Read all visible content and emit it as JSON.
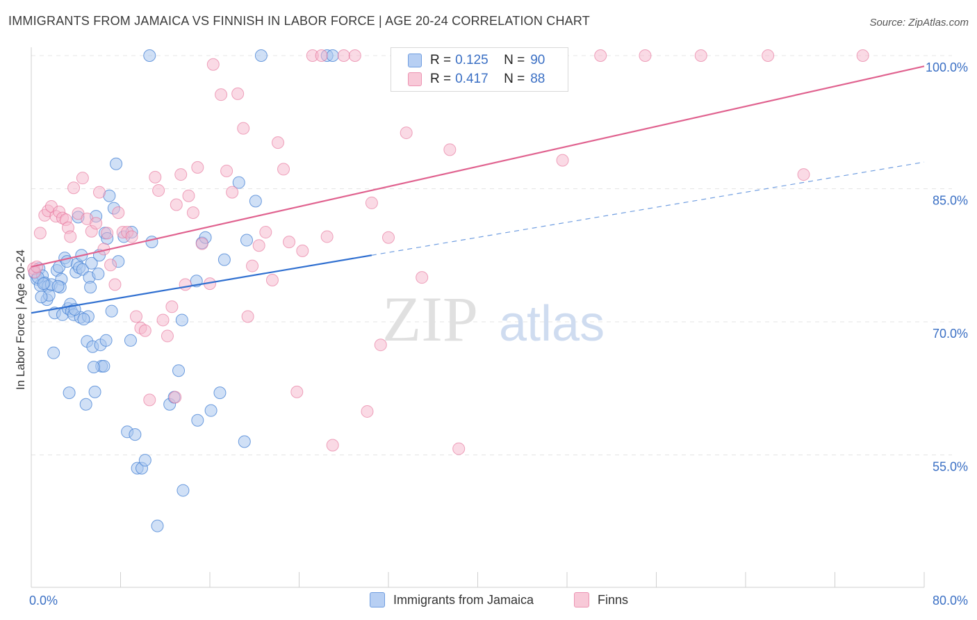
{
  "title": "IMMIGRANTS FROM JAMAICA VS FINNISH IN LABOR FORCE | AGE 20-24 CORRELATION CHART",
  "source": "Source: ZipAtlas.com",
  "watermark": {
    "zip": "ZIP",
    "atlas": "atlas"
  },
  "legend": {
    "rows": [
      {
        "r_label": "R = ",
        "r_value": "0.125",
        "n_label": "N = ",
        "n_value": "90"
      },
      {
        "r_label": "R = ",
        "r_value": "0.417",
        "n_label": "N = ",
        "n_value": "88"
      }
    ]
  },
  "colors": {
    "blue": "#4a84d6",
    "blue_fill": "#a9c6ef",
    "pink": "#e46a95",
    "pink_fill": "#f6b6cb",
    "axis_label": "#3a6fc4",
    "grid": "#e4e4e4"
  },
  "chart_data": {
    "type": "scatter",
    "title": "IMMIGRANTS FROM JAMAICA VS FINNISH IN LABOR FORCE | AGE 20-24 CORRELATION CHART",
    "xlabel": "",
    "ylabel": "In Labor Force | Age 20-24",
    "xlim": [
      0,
      80
    ],
    "ylim": [
      40,
      100
    ],
    "x_tick_labels": [
      "0.0%",
      "80.0%"
    ],
    "y_ticks": [
      55,
      70,
      85,
      100
    ],
    "y_tick_labels": [
      "55.0%",
      "70.0%",
      "85.0%",
      "100.0%"
    ],
    "grid": true,
    "legend_position": "top-center",
    "series": [
      {
        "name": "Immigrants from Jamaica",
        "color": "#4a84d6",
        "R": 0.125,
        "N": 90,
        "trend": {
          "x": [
            0,
            30.5
          ],
          "y": [
            71.0,
            77.5
          ]
        },
        "trend_extension": {
          "x": [
            30.5,
            80
          ],
          "y": [
            77.5,
            88.0
          ]
        },
        "points": [
          [
            0.3,
            75.5
          ],
          [
            0.5,
            74.8
          ],
          [
            0.7,
            76.0
          ],
          [
            0.8,
            74.1
          ],
          [
            1.0,
            75.2
          ],
          [
            1.2,
            74.4
          ],
          [
            1.4,
            72.5
          ],
          [
            1.5,
            74.0
          ],
          [
            1.6,
            73.0
          ],
          [
            1.8,
            74.2
          ],
          [
            2.0,
            66.5
          ],
          [
            2.1,
            71.0
          ],
          [
            2.3,
            75.8
          ],
          [
            2.5,
            76.2
          ],
          [
            2.7,
            74.8
          ],
          [
            2.8,
            70.8
          ],
          [
            3.0,
            77.2
          ],
          [
            3.2,
            76.8
          ],
          [
            3.3,
            71.5
          ],
          [
            3.5,
            72.0
          ],
          [
            3.6,
            71.2
          ],
          [
            3.8,
            70.8
          ],
          [
            4.0,
            75.6
          ],
          [
            4.1,
            76.5
          ],
          [
            4.2,
            81.8
          ],
          [
            4.3,
            76.1
          ],
          [
            4.4,
            70.5
          ],
          [
            4.5,
            77.5
          ],
          [
            4.6,
            75.9
          ],
          [
            5.0,
            67.8
          ],
          [
            5.1,
            70.6
          ],
          [
            5.2,
            75.0
          ],
          [
            5.3,
            73.9
          ],
          [
            5.4,
            76.6
          ],
          [
            5.5,
            67.2
          ],
          [
            5.7,
            62.1
          ],
          [
            5.8,
            81.9
          ],
          [
            6.0,
            75.4
          ],
          [
            6.1,
            77.5
          ],
          [
            6.2,
            67.4
          ],
          [
            6.3,
            65.0
          ],
          [
            6.5,
            65.0
          ],
          [
            6.6,
            80.0
          ],
          [
            6.7,
            67.9
          ],
          [
            6.8,
            79.4
          ],
          [
            7.0,
            84.2
          ],
          [
            7.2,
            71.2
          ],
          [
            7.4,
            82.8
          ],
          [
            7.6,
            87.8
          ],
          [
            7.8,
            76.8
          ],
          [
            8.3,
            79.6
          ],
          [
            8.6,
            57.6
          ],
          [
            8.9,
            67.9
          ],
          [
            9.0,
            80.1
          ],
          [
            9.3,
            57.3
          ],
          [
            9.5,
            53.5
          ],
          [
            9.9,
            53.5
          ],
          [
            10.2,
            54.4
          ],
          [
            10.8,
            79.0
          ],
          [
            11.3,
            47.0
          ],
          [
            12.4,
            60.7
          ],
          [
            12.8,
            61.5
          ],
          [
            13.2,
            64.5
          ],
          [
            13.5,
            70.2
          ],
          [
            13.6,
            51.0
          ],
          [
            14.8,
            74.6
          ],
          [
            14.9,
            58.9
          ],
          [
            15.3,
            78.9
          ],
          [
            15.6,
            79.5
          ],
          [
            16.1,
            60.0
          ],
          [
            16.9,
            62.0
          ],
          [
            17.3,
            77.0
          ],
          [
            18.6,
            85.7
          ],
          [
            19.1,
            56.5
          ],
          [
            19.3,
            79.2
          ],
          [
            20.1,
            83.6
          ],
          [
            20.6,
            100.0
          ],
          [
            26.5,
            100.0
          ],
          [
            27.0,
            100.0
          ],
          [
            10.6,
            100.0
          ],
          [
            0.6,
            75.0
          ],
          [
            1.1,
            74.3
          ],
          [
            2.6,
            73.9
          ],
          [
            3.9,
            71.4
          ],
          [
            4.7,
            70.3
          ],
          [
            0.9,
            72.8
          ],
          [
            3.4,
            62.0
          ],
          [
            4.9,
            60.7
          ],
          [
            5.6,
            64.9
          ],
          [
            2.4,
            74.0
          ]
        ]
      },
      {
        "name": "Finns",
        "color": "#e46a95",
        "R": 0.417,
        "N": 88,
        "trend": {
          "x": [
            0,
            80
          ],
          "y": [
            76.2,
            98.8
          ]
        },
        "points": [
          [
            0.2,
            76.0
          ],
          [
            0.3,
            75.6
          ],
          [
            0.5,
            76.2
          ],
          [
            0.8,
            80.0
          ],
          [
            1.2,
            82.0
          ],
          [
            1.5,
            82.5
          ],
          [
            1.8,
            83.0
          ],
          [
            2.2,
            81.9
          ],
          [
            2.5,
            82.4
          ],
          [
            2.8,
            81.7
          ],
          [
            3.1,
            81.5
          ],
          [
            3.3,
            80.6
          ],
          [
            3.5,
            79.6
          ],
          [
            3.8,
            85.1
          ],
          [
            4.2,
            82.2
          ],
          [
            4.6,
            86.2
          ],
          [
            5.0,
            81.6
          ],
          [
            5.4,
            80.2
          ],
          [
            5.8,
            81.1
          ],
          [
            6.1,
            84.6
          ],
          [
            6.5,
            78.2
          ],
          [
            6.8,
            80.0
          ],
          [
            7.1,
            76.4
          ],
          [
            7.5,
            74.2
          ],
          [
            7.8,
            82.3
          ],
          [
            8.2,
            80.1
          ],
          [
            8.6,
            80.1
          ],
          [
            9.0,
            79.6
          ],
          [
            9.4,
            70.6
          ],
          [
            9.8,
            69.3
          ],
          [
            10.2,
            69.0
          ],
          [
            10.6,
            61.2
          ],
          [
            11.1,
            86.3
          ],
          [
            11.4,
            84.8
          ],
          [
            11.8,
            70.2
          ],
          [
            12.2,
            68.4
          ],
          [
            12.6,
            71.7
          ],
          [
            13.0,
            83.2
          ],
          [
            13.4,
            86.6
          ],
          [
            13.8,
            74.2
          ],
          [
            14.1,
            84.2
          ],
          [
            14.5,
            82.3
          ],
          [
            14.9,
            87.4
          ],
          [
            15.3,
            78.8
          ],
          [
            16.0,
            74.3
          ],
          [
            16.3,
            99.0
          ],
          [
            17.0,
            95.6
          ],
          [
            17.5,
            87.0
          ],
          [
            18.0,
            84.6
          ],
          [
            18.5,
            95.7
          ],
          [
            19.0,
            91.8
          ],
          [
            19.4,
            70.6
          ],
          [
            19.8,
            76.3
          ],
          [
            20.4,
            78.6
          ],
          [
            21.0,
            80.1
          ],
          [
            21.6,
            74.7
          ],
          [
            22.1,
            90.2
          ],
          [
            22.6,
            87.2
          ],
          [
            23.1,
            79.0
          ],
          [
            23.8,
            62.1
          ],
          [
            24.3,
            78.0
          ],
          [
            25.2,
            100.0
          ],
          [
            26.0,
            100.0
          ],
          [
            26.5,
            79.6
          ],
          [
            27.0,
            56.1
          ],
          [
            28.0,
            100.0
          ],
          [
            29.0,
            100.0
          ],
          [
            30.1,
            59.9
          ],
          [
            30.5,
            83.4
          ],
          [
            31.3,
            67.4
          ],
          [
            32.0,
            79.5
          ],
          [
            33.6,
            91.3
          ],
          [
            35.0,
            75.0
          ],
          [
            36.2,
            100.0
          ],
          [
            37.5,
            89.4
          ],
          [
            38.3,
            55.7
          ],
          [
            40.0,
            100.0
          ],
          [
            41.1,
            100.0
          ],
          [
            43.5,
            100.0
          ],
          [
            45.0,
            100.0
          ],
          [
            47.6,
            88.2
          ],
          [
            51.0,
            100.0
          ],
          [
            55.0,
            100.0
          ],
          [
            60.0,
            100.0
          ],
          [
            66.0,
            100.0
          ],
          [
            69.2,
            86.6
          ],
          [
            74.5,
            100.0
          ],
          [
            12.9,
            61.5
          ]
        ]
      }
    ]
  },
  "bottom_legend": {
    "series_1": "Immigrants from Jamaica",
    "series_2": "Finns"
  }
}
